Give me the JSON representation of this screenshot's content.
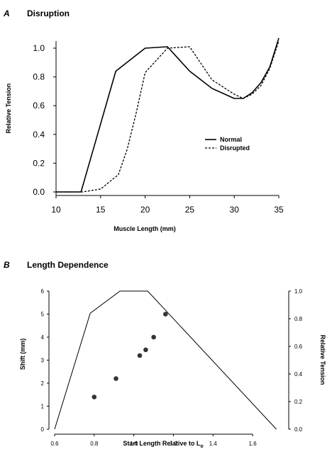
{
  "chart_data": [
    {
      "panel": "A",
      "title": "Disruption",
      "type": "line",
      "xlabel": "Muscle Length (mm)",
      "ylabel": "Relative Tension",
      "xlim": [
        10,
        35
      ],
      "ylim": [
        0,
        1.0
      ],
      "xticks": [
        "10",
        "15",
        "20",
        "25",
        "30",
        "35"
      ],
      "yticks": [
        "0.0",
        "0.2",
        "0.4",
        "0.6",
        "0.8",
        "1.0"
      ],
      "legend_position": "right",
      "series": [
        {
          "name": "Normal",
          "style": "solid",
          "x": [
            10,
            12.8,
            16.7,
            20,
            22.5,
            25,
            27.5,
            30,
            31,
            32,
            33,
            34,
            35
          ],
          "y": [
            0,
            0,
            0.84,
            1.0,
            1.01,
            0.84,
            0.72,
            0.65,
            0.65,
            0.69,
            0.76,
            0.87,
            1.07
          ]
        },
        {
          "name": "Disrupted",
          "style": "dashed",
          "x": [
            10,
            13,
            15,
            17,
            18,
            19,
            20,
            22.5,
            25,
            27.5,
            30,
            31,
            32,
            33,
            34,
            35
          ],
          "y": [
            0,
            0,
            0.02,
            0.12,
            0.3,
            0.55,
            0.83,
            1.0,
            1.01,
            0.78,
            0.68,
            0.65,
            0.68,
            0.74,
            0.86,
            1.05
          ]
        }
      ]
    },
    {
      "panel": "B",
      "title": "Length Dependence",
      "type": "scatter",
      "xlabel": "Start Length Relative to Lo",
      "ylabel": "Shift (mm)",
      "y2label": "Relative Tension",
      "xlim": [
        0.6,
        1.75
      ],
      "ylim": [
        0,
        6
      ],
      "y2lim": [
        0,
        1.0
      ],
      "xticks": [
        "0.6",
        "0.8",
        "1.0",
        "1.2",
        "1.4",
        "1.6"
      ],
      "yticks": [
        "0",
        "1",
        "2",
        "3",
        "4",
        "5",
        "6"
      ],
      "y2ticks": [
        "0.0",
        "0.2",
        "0.4",
        "0.6",
        "0.8",
        "1.0"
      ],
      "points": {
        "x": [
          0.8,
          0.91,
          1.03,
          1.06,
          1.1,
          1.16
        ],
        "y": [
          1.4,
          2.2,
          3.2,
          3.45,
          4.0,
          5.0
        ]
      },
      "tension_curve": {
        "x": [
          0.6,
          0.78,
          0.93,
          1.07,
          1.72
        ],
        "y": [
          0,
          0.84,
          1.0,
          1.0,
          0
        ]
      }
    }
  ]
}
